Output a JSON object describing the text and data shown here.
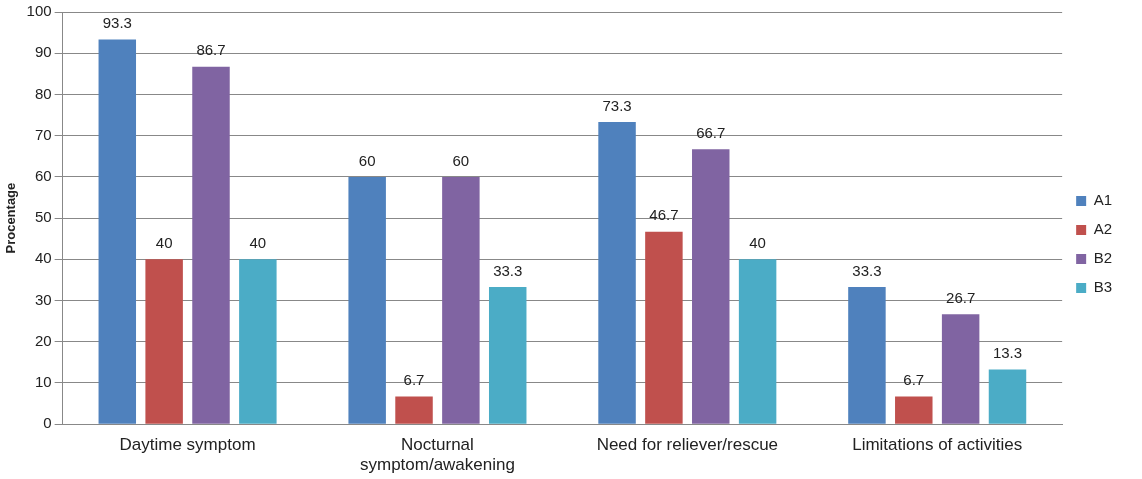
{
  "chart_data": {
    "type": "bar",
    "ylabel": "Procentage",
    "categories": [
      "Daytime symptom",
      "Nocturnal symptom/awakening",
      "Need for reliever/rescue",
      "Limitations of activities"
    ],
    "series": [
      {
        "name": "A1",
        "color": "#4f81bd",
        "values": [
          93.3,
          60,
          73.3,
          33.3
        ]
      },
      {
        "name": "A2",
        "color": "#c0504d",
        "values": [
          40,
          6.7,
          46.7,
          6.7
        ]
      },
      {
        "name": "B2",
        "color": "#8064a2",
        "values": [
          86.7,
          60,
          66.7,
          26.7
        ]
      },
      {
        "name": "B3",
        "color": "#4bacc6",
        "values": [
          40,
          33.3,
          40,
          13.3
        ]
      }
    ],
    "ylim": [
      0,
      100
    ],
    "yticks": [
      0,
      10,
      20,
      30,
      40,
      50,
      60,
      70,
      80,
      90,
      100
    ],
    "grid": "y",
    "legend": "right",
    "data_labels": true
  }
}
